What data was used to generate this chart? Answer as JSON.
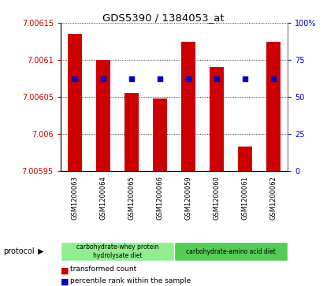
{
  "title": "GDS5390 / 1384053_at",
  "samples": [
    "GSM1200063",
    "GSM1200064",
    "GSM1200065",
    "GSM1200066",
    "GSM1200059",
    "GSM1200060",
    "GSM1200061",
    "GSM1200062"
  ],
  "red_values": [
    7.006135,
    7.0061,
    7.006055,
    7.006048,
    7.006125,
    7.00609,
    7.005983,
    7.006125
  ],
  "blue_values": [
    62,
    62,
    62,
    62,
    62,
    62,
    62,
    62
  ],
  "ymin": 7.00595,
  "ymax": 7.00615,
  "y_ticks": [
    7.00595,
    7.006,
    7.00605,
    7.0061,
    7.00615
  ],
  "y_tick_labels": [
    "7.00595",
    "7.006",
    "7.00605",
    "7.0061",
    "7.00615"
  ],
  "y2min": 0,
  "y2max": 100,
  "y2_ticks": [
    0,
    25,
    50,
    75,
    100
  ],
  "y2_tick_labels": [
    "0",
    "25",
    "50",
    "75",
    "100%"
  ],
  "protocol_groups": [
    {
      "label": "carbohydrate-whey protein\nhydrolysate diet",
      "start": 0,
      "end": 4,
      "color": "#90EE90"
    },
    {
      "label": "carbohydrate-amino acid diet",
      "start": 4,
      "end": 8,
      "color": "#55CC55"
    }
  ],
  "bar_color": "#CC0000",
  "blue_color": "#0000CC",
  "tick_label_color_left": "#CC0000",
  "tick_label_color_right": "#0000CC",
  "legend_red": "transformed count",
  "legend_blue": "percentile rank within the sample",
  "protocol_label": "protocol",
  "bar_width": 0.5,
  "plot_bg_color": "#FFFFFF",
  "fig_bg_color": "#FFFFFF",
  "label_bg_color": "#C8C8C8",
  "label_divider_color": "#FFFFFF"
}
